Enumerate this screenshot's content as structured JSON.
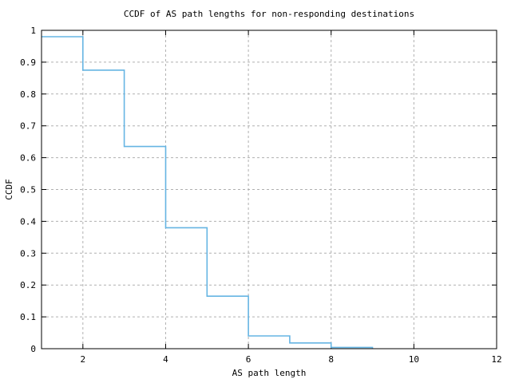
{
  "window": {
    "background": "#ffffff"
  },
  "chart_data": {
    "type": "line",
    "subtype": "step-post",
    "title": "CCDF of AS path lengths for non-responding destinations",
    "xlabel": "AS path length",
    "ylabel": "CCDF",
    "xlim": [
      1,
      12
    ],
    "ylim": [
      0,
      1
    ],
    "x_ticks": {
      "values": [
        2,
        4,
        6,
        8,
        10,
        12
      ],
      "labels": [
        "2",
        "4",
        "6",
        "8",
        "10",
        "12"
      ]
    },
    "y_ticks": {
      "values": [
        0,
        0.1,
        0.2,
        0.3,
        0.4,
        0.5,
        0.6,
        0.7,
        0.8,
        0.9,
        1
      ],
      "labels": [
        "0",
        "0.1",
        "0.2",
        "0.3",
        "0.4",
        "0.5",
        "0.6",
        "0.7",
        "0.8",
        "0.9",
        "1"
      ]
    },
    "grid": true,
    "legend": null,
    "x": [
      1,
      2,
      3,
      4,
      5,
      6,
      7,
      8,
      9
    ],
    "y": [
      0.98,
      0.875,
      0.635,
      0.38,
      0.165,
      0.04,
      0.018,
      0.004,
      0
    ],
    "step_segments": [
      {
        "x_start": 1,
        "x_end": 2,
        "ccdf": 0.98
      },
      {
        "x_start": 2,
        "x_end": 3,
        "ccdf": 0.875
      },
      {
        "x_start": 3,
        "x_end": 4,
        "ccdf": 0.635
      },
      {
        "x_start": 4,
        "x_end": 5,
        "ccdf": 0.38
      },
      {
        "x_start": 5,
        "x_end": 6,
        "ccdf": 0.165
      },
      {
        "x_start": 6,
        "x_end": 7,
        "ccdf": 0.04
      },
      {
        "x_start": 7,
        "x_end": 8,
        "ccdf": 0.018
      },
      {
        "x_start": 8,
        "x_end": 9,
        "ccdf": 0.004
      }
    ],
    "colors": {
      "line": "#66b5e3",
      "grid": "#b0b0b0",
      "frame": "#000000",
      "text": "#000000",
      "background": "#ffffff"
    }
  }
}
